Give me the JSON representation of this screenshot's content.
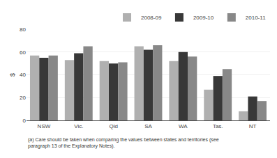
{
  "chart_data": {
    "type": "bar",
    "categories": [
      "NSW",
      "Vic.",
      "Qld",
      "SA",
      "WA",
      "Tas.",
      "NT"
    ],
    "series": [
      {
        "name": "2008-09",
        "color": "#b0b0b0",
        "values": [
          57,
          53,
          52,
          65,
          52,
          27,
          8
        ]
      },
      {
        "name": "2009-10",
        "color": "#383838",
        "values": [
          55,
          59,
          50,
          62,
          60,
          39,
          21
        ]
      },
      {
        "name": "2010-11",
        "color": "#888888",
        "values": [
          57,
          65,
          51,
          66,
          56,
          45,
          17
        ]
      }
    ],
    "ylabel": "$",
    "ylim": [
      0,
      80
    ],
    "yticks": [
      0,
      20,
      40,
      60,
      80
    ],
    "grid": true,
    "legend": "upper right",
    "annotations": [
      "(a) Care should be taken when comparing the values between states and territories (see\nparagraph 13 of the Explanatory Notes)."
    ]
  }
}
